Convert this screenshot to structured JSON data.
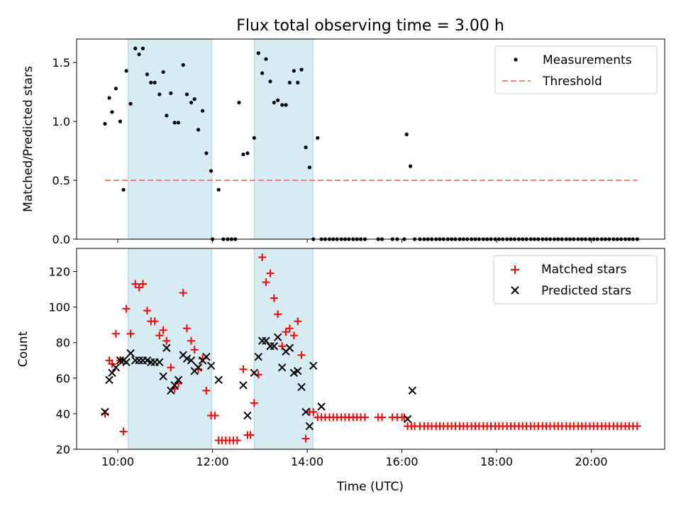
{
  "chart_data": [
    {
      "type": "scatter",
      "title": "Flux total observing time = 3.00 h",
      "xlabel": "",
      "ylabel": "Matched/Predicted stars",
      "xlim": [
        9.13,
        21.55
      ],
      "ylim": [
        0,
        1.7
      ],
      "yticks": [
        0.0,
        0.5,
        1.0,
        1.5
      ],
      "ytick_labels": [
        "0.0",
        "0.5",
        "1.0",
        "1.5"
      ],
      "shaded_spans": [
        [
          10.22,
          11.98
        ],
        [
          12.88,
          14.12
        ]
      ],
      "legend_position": "upper right",
      "series": [
        {
          "name": "Measurements",
          "marker": "dot",
          "color": "#000000",
          "x": [
            9.73,
            9.82,
            9.88,
            9.96,
            10.05,
            10.12,
            10.18,
            10.27,
            10.37,
            10.45,
            10.53,
            10.62,
            10.7,
            10.78,
            10.88,
            10.96,
            11.03,
            11.12,
            11.2,
            11.28,
            11.38,
            11.46,
            11.55,
            11.62,
            11.7,
            11.79,
            11.87,
            11.97,
            12.13,
            12.0,
            12.23,
            12.32,
            12.4,
            12.48,
            12.56,
            12.65,
            12.74,
            12.88,
            12.97,
            13.05,
            13.13,
            13.22,
            13.3,
            13.38,
            13.47,
            13.55,
            13.63,
            13.72,
            13.8,
            13.88,
            13.97,
            14.05,
            14.13,
            14.22,
            14.3,
            14.38,
            14.47,
            14.55,
            14.63,
            14.72,
            14.8,
            14.88,
            14.97,
            15.05,
            15.13,
            15.22,
            15.5,
            15.58,
            15.8,
            15.9,
            16.05,
            16.1,
            16.18,
            16.27,
            16.38,
            16.47,
            16.55,
            16.63,
            16.72,
            16.8,
            16.88,
            16.97,
            17.05,
            17.13,
            17.22,
            17.3,
            17.38,
            17.47,
            17.55,
            17.63,
            17.72,
            17.8,
            17.88,
            17.97,
            18.05,
            18.13,
            18.22,
            18.3,
            18.38,
            18.47,
            18.55,
            18.63,
            18.72,
            18.8,
            18.88,
            18.97,
            19.05,
            19.13,
            19.22,
            19.3,
            19.38,
            19.47,
            19.55,
            19.63,
            19.72,
            19.8,
            19.88,
            19.97,
            20.05,
            20.13,
            20.22,
            20.3,
            20.38,
            20.47,
            20.55,
            20.63,
            20.72,
            20.8,
            20.88,
            20.97
          ],
          "y": [
            0.98,
            1.2,
            1.08,
            1.28,
            1.0,
            0.42,
            1.43,
            1.15,
            1.62,
            1.57,
            1.62,
            1.4,
            1.33,
            1.33,
            1.23,
            1.42,
            1.05,
            1.24,
            0.99,
            0.99,
            1.48,
            1.23,
            1.16,
            1.19,
            0.93,
            1.09,
            0.73,
            0.58,
            0.42,
            0.0,
            0.0,
            0.0,
            0.0,
            0.0,
            1.16,
            0.72,
            0.73,
            0.86,
            1.58,
            1.41,
            1.53,
            1.34,
            1.16,
            1.18,
            1.14,
            1.14,
            1.33,
            1.43,
            1.33,
            1.44,
            0.78,
            0.61,
            0.0,
            0.86,
            0.0,
            0.0,
            0.0,
            0.0,
            0.0,
            0.0,
            0.0,
            0.0,
            0.0,
            0.0,
            0.0,
            0.0,
            0.0,
            0.0,
            0.0,
            0.0,
            0.0,
            0.89,
            0.62,
            0.0,
            0.0,
            0.0,
            0.0,
            0.0,
            0.0,
            0.0,
            0.0,
            0.0,
            0.0,
            0.0,
            0.0,
            0.0,
            0.0,
            0.0,
            0.0,
            0.0,
            0.0,
            0.0,
            0.0,
            0.0,
            0.0,
            0.0,
            0.0,
            0.0,
            0.0,
            0.0,
            0.0,
            0.0,
            0.0,
            0.0,
            0.0,
            0.0,
            0.0,
            0.0,
            0.0,
            0.0,
            0.0,
            0.0,
            0.0,
            0.0,
            0.0,
            0.0,
            0.0,
            0.0,
            0.0,
            0.0,
            0.0,
            0.0,
            0.0,
            0.0,
            0.0,
            0.0,
            0.0,
            0.0,
            0.0,
            0.0
          ]
        },
        {
          "name": "Threshold",
          "marker": "dashed-line",
          "color": "#ff7f7f",
          "x": [
            9.73,
            20.97
          ],
          "y": [
            0.5,
            0.5
          ]
        }
      ]
    },
    {
      "type": "scatter",
      "title": "",
      "xlabel": "Time (UTC)",
      "ylabel": "Count",
      "xlim": [
        9.13,
        21.55
      ],
      "ylim": [
        20,
        133
      ],
      "yticks": [
        20,
        40,
        60,
        80,
        100,
        120
      ],
      "ytick_labels": [
        "20",
        "40",
        "60",
        "80",
        "100",
        "120"
      ],
      "xticks": [
        10,
        12,
        14,
        16,
        18,
        20
      ],
      "xtick_labels": [
        "10:00",
        "12:00",
        "14:00",
        "16:00",
        "18:00",
        "20:00"
      ],
      "shaded_spans": [
        [
          10.22,
          11.98
        ],
        [
          12.88,
          14.12
        ]
      ],
      "legend_position": "upper right",
      "series": [
        {
          "name": "Matched stars",
          "marker": "plus",
          "color": "#ff0000",
          "x": [
            9.73,
            9.82,
            9.88,
            9.96,
            10.05,
            10.12,
            10.18,
            10.27,
            10.37,
            10.45,
            10.53,
            10.62,
            10.7,
            10.78,
            10.88,
            10.96,
            11.03,
            11.12,
            11.2,
            11.28,
            11.38,
            11.46,
            11.55,
            11.62,
            11.7,
            11.79,
            11.87,
            11.97,
            12.05,
            12.13,
            12.2,
            12.28,
            12.36,
            12.44,
            12.52,
            12.65,
            12.74,
            12.8,
            12.88,
            12.97,
            13.05,
            13.13,
            13.22,
            13.3,
            13.38,
            13.47,
            13.55,
            13.63,
            13.72,
            13.8,
            13.88,
            13.97,
            14.05,
            14.13,
            14.22,
            14.3,
            14.38,
            14.47,
            14.55,
            14.63,
            14.72,
            14.8,
            14.88,
            14.97,
            15.05,
            15.13,
            15.22,
            15.5,
            15.58,
            15.8,
            15.9,
            16.0,
            16.05,
            16.12,
            16.2,
            16.27,
            16.38,
            16.47,
            16.55,
            16.63,
            16.72,
            16.8,
            16.88,
            16.97,
            17.05,
            17.13,
            17.22,
            17.3,
            17.38,
            17.47,
            17.55,
            17.63,
            17.72,
            17.8,
            17.88,
            17.97,
            18.05,
            18.13,
            18.22,
            18.3,
            18.38,
            18.47,
            18.55,
            18.63,
            18.72,
            18.8,
            18.88,
            18.97,
            19.05,
            19.13,
            19.22,
            19.3,
            19.38,
            19.47,
            19.55,
            19.63,
            19.72,
            19.8,
            19.88,
            19.97,
            20.05,
            20.13,
            20.22,
            20.3,
            20.38,
            20.47,
            20.55,
            20.63,
            20.72,
            20.8,
            20.88,
            20.97
          ],
          "y": [
            40,
            70,
            68,
            85,
            70,
            30,
            99,
            85,
            113,
            111,
            113,
            98,
            92,
            92,
            84,
            87,
            81,
            66,
            54,
            57,
            108,
            88,
            81,
            76,
            65,
            71,
            53,
            39,
            39,
            25,
            25,
            25,
            25,
            25,
            25,
            65,
            28,
            28,
            46,
            62,
            128,
            114,
            119,
            105,
            96,
            78,
            86,
            88,
            84,
            92,
            73,
            26,
            41,
            41,
            38,
            38,
            38,
            38,
            38,
            38,
            38,
            38,
            38,
            38,
            38,
            38,
            38,
            38,
            38,
            38,
            38,
            38,
            38,
            33,
            33,
            33,
            33,
            33,
            33,
            33,
            33,
            33,
            33,
            33,
            33,
            33,
            33,
            33,
            33,
            33,
            33,
            33,
            33,
            33,
            33,
            33,
            33,
            33,
            33,
            33,
            33,
            33,
            33,
            33,
            33,
            33,
            33,
            33,
            33,
            33,
            33,
            33,
            33,
            33,
            33,
            33,
            33,
            33,
            33,
            33,
            33,
            33,
            33,
            33,
            33,
            33,
            33,
            33,
            33,
            33,
            33,
            33
          ]
        },
        {
          "name": "Predicted stars",
          "marker": "x",
          "color": "#000000",
          "x": [
            9.73,
            9.82,
            9.88,
            9.96,
            10.05,
            10.12,
            10.18,
            10.27,
            10.37,
            10.45,
            10.53,
            10.62,
            10.7,
            10.78,
            10.88,
            10.96,
            11.03,
            11.12,
            11.2,
            11.28,
            11.38,
            11.46,
            11.55,
            11.62,
            11.7,
            11.79,
            11.87,
            11.97,
            12.13,
            12.65,
            12.74,
            12.88,
            12.97,
            13.05,
            13.13,
            13.22,
            13.3,
            13.38,
            13.47,
            13.55,
            13.63,
            13.72,
            13.8,
            13.88,
            13.97,
            14.05,
            14.13,
            14.3,
            16.12,
            16.22
          ],
          "y": [
            41,
            59,
            63,
            66,
            70,
            70,
            69,
            74,
            70,
            70,
            70,
            70,
            69,
            69,
            69,
            61,
            77,
            53,
            56,
            59,
            73,
            71,
            70,
            64,
            66,
            70,
            72,
            67,
            59,
            56,
            39,
            63,
            72,
            81,
            81,
            78,
            78,
            83,
            66,
            75,
            77,
            63,
            64,
            55,
            41,
            33,
            67,
            44,
            37,
            53
          ]
        }
      ]
    }
  ]
}
